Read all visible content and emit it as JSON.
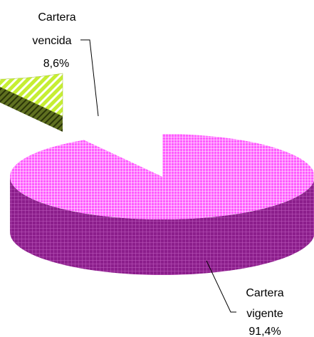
{
  "chart_data": {
    "type": "pie",
    "style": "3d-exploded",
    "series": [
      {
        "label_line1": "Cartera",
        "label_line2": "vencida",
        "value": 8.6,
        "display": "8,6%",
        "color_top": "#c6ee33",
        "color_side": "#4f5e14",
        "pattern": "diagonal-stripes"
      },
      {
        "label_line1": "Cartera",
        "label_line2": "vigente",
        "value": 91.4,
        "display": "91,4%",
        "color_top": "#ff5cff",
        "color_side": "#8b1e8b",
        "pattern": "grid"
      }
    ]
  }
}
